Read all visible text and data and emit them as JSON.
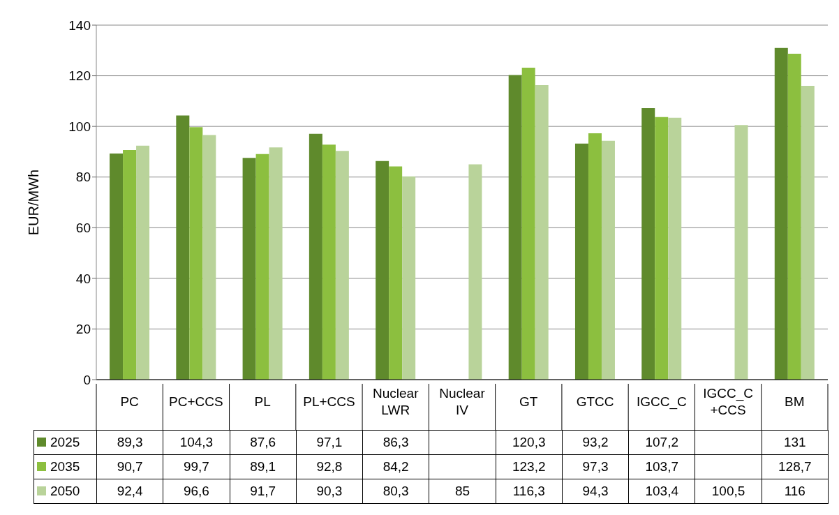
{
  "chart_data": {
    "type": "bar",
    "ylabel": "EUR/MWh",
    "categories": [
      "PC",
      "PC+CCS",
      "PL",
      "PL+CCS",
      "Nuclear LWR",
      "Nuclear IV",
      "GT",
      "GTCC",
      "IGCC_C",
      "IGCC_C +CCS",
      "BM"
    ],
    "series": [
      {
        "name": "2025",
        "color": "#5f8a2c",
        "values": [
          89.3,
          104.3,
          87.6,
          97.1,
          86.3,
          null,
          120.3,
          93.2,
          107.2,
          null,
          131
        ],
        "value_labels": [
          "89,3",
          "104,3",
          "87,6",
          "97,1",
          "86,3",
          null,
          "120,3",
          "93,2",
          "107,2",
          null,
          "131"
        ]
      },
      {
        "name": "2035",
        "color": "#8cbf3f",
        "values": [
          90.7,
          99.7,
          89.1,
          92.8,
          84.2,
          null,
          123.2,
          97.3,
          103.7,
          null,
          128.7
        ],
        "value_labels": [
          "90,7",
          "99,7",
          "89,1",
          "92,8",
          "84,2",
          null,
          "123,2",
          "97,3",
          "103,7",
          null,
          "128,7"
        ]
      },
      {
        "name": "2050",
        "color": "#b9d39a",
        "values": [
          92.4,
          96.6,
          91.7,
          90.3,
          80.3,
          85,
          116.3,
          94.3,
          103.4,
          100.5,
          116
        ],
        "value_labels": [
          "92,4",
          "96,6",
          "91,7",
          "90,3",
          "80,3",
          "85",
          "116,3",
          "94,3",
          "103,4",
          "100,5",
          "116"
        ]
      }
    ],
    "ylim": [
      0,
      140
    ],
    "yticks": [
      0,
      20,
      40,
      60,
      80,
      100,
      120,
      140
    ],
    "grid": "y",
    "legend": "bottom"
  }
}
